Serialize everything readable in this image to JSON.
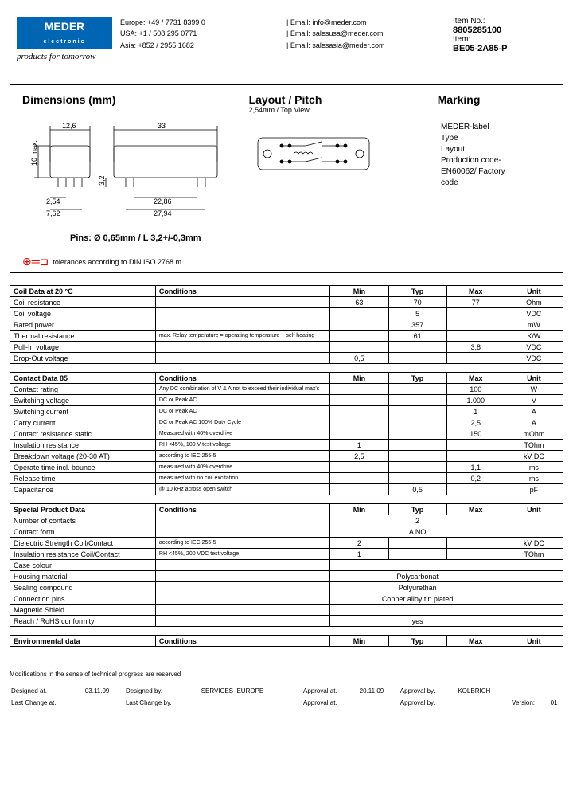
{
  "header": {
    "logo_main": "MEDER",
    "logo_sub": "electronic",
    "tagline": "products for tomorrow",
    "contacts": {
      "europe_phone": "Europe: +49 / 7731 8399 0",
      "usa_phone": "USA: +1 / 508 295 0771",
      "asia_phone": "Asia: +852 / 2955 1682",
      "europe_email": "| Email: info@meder.com",
      "usa_email": "| Email: salesusa@meder.com",
      "asia_email": "| Email: salesasia@meder.com"
    },
    "item_no_label": "Item No.:",
    "item_no": "8805285100",
    "item_label": "Item:",
    "item": "BE05-2A85-P"
  },
  "diagram": {
    "title_dimensions": "Dimensions (mm)",
    "title_layout": "Layout / Pitch",
    "layout_sub": "2,54mm / Top View",
    "title_marking": "Marking",
    "marking_lines": [
      "MEDER-label",
      "Type",
      "Layout",
      "Production code-",
      "EN60062/ Factory",
      "code"
    ],
    "dims": {
      "w1": "12,6",
      "w2": "33",
      "h1": "10 max.",
      "h2": "3,2",
      "p1": "2,54",
      "p2": "7,62",
      "p3": "22,86",
      "p4": "27,94"
    },
    "pins_note": "Pins: Ø 0,65mm / L 3,2+/-0,3mm",
    "tolerance": "tolerances according to DIN ISO 2768 m"
  },
  "tables": {
    "coil": {
      "title": "Coil Data at 20 °C",
      "rows": [
        {
          "name": "Coil resistance",
          "cond": "",
          "min": "63",
          "typ": "70",
          "max": "77",
          "unit": "Ohm"
        },
        {
          "name": "Coil voltage",
          "cond": "",
          "min": "",
          "typ": "5",
          "max": "",
          "unit": "VDC"
        },
        {
          "name": "Rated power",
          "cond": "",
          "min": "",
          "typ": "357",
          "max": "",
          "unit": "mW"
        },
        {
          "name": "Thermal resistance",
          "cond": "max. Relay temperature = operating temperature + self heating",
          "min": "",
          "typ": "61",
          "max": "",
          "unit": "K/W"
        },
        {
          "name": "Pull-In voltage",
          "cond": "",
          "min": "",
          "typ": "",
          "max": "3,8",
          "unit": "VDC"
        },
        {
          "name": "Drop-Out voltage",
          "cond": "",
          "min": "0,5",
          "typ": "",
          "max": "",
          "unit": "VDC"
        }
      ]
    },
    "contact": {
      "title": "Contact Data  85",
      "rows": [
        {
          "name": "Contact rating",
          "cond": "Any DC combination of V & A not to exceed their individual max's",
          "min": "",
          "typ": "",
          "max": "100",
          "unit": "W"
        },
        {
          "name": "Switching voltage",
          "cond": "DC or Peak AC",
          "min": "",
          "typ": "",
          "max": "1.000",
          "unit": "V"
        },
        {
          "name": "Switching current",
          "cond": "DC or Peak AC",
          "min": "",
          "typ": "",
          "max": "1",
          "unit": "A"
        },
        {
          "name": "Carry current",
          "cond": "DC or Peak AC 100% Duty Cycle",
          "min": "",
          "typ": "",
          "max": "2,5",
          "unit": "A"
        },
        {
          "name": "Contact resistance static",
          "cond": "Measured with 40% overdrive",
          "min": "",
          "typ": "",
          "max": "150",
          "unit": "mOhm"
        },
        {
          "name": "Insulation resistance",
          "cond": "RH <45%, 100 V test voltage",
          "min": "1",
          "typ": "",
          "max": "",
          "unit": "TOhm"
        },
        {
          "name": "Breakdown voltage  (20-30 AT)",
          "cond": "according to IEC 255-5",
          "min": "2,5",
          "typ": "",
          "max": "",
          "unit": "kV DC"
        },
        {
          "name": "Operate time incl. bounce",
          "cond": "measured with 40% overdrive",
          "min": "",
          "typ": "",
          "max": "1,1",
          "unit": "ms"
        },
        {
          "name": "Release time",
          "cond": "measured with no coil excitation",
          "min": "",
          "typ": "",
          "max": "0,2",
          "unit": "ms"
        },
        {
          "name": "Capacitance",
          "cond": "@ 10 kHz across open switch",
          "min": "",
          "typ": "0,5",
          "max": "",
          "unit": "pF"
        }
      ]
    },
    "special": {
      "title": "Special Product Data",
      "rows": [
        {
          "name": "Number of contacts",
          "cond": "",
          "span": "2",
          "unit": ""
        },
        {
          "name": "Contact   form",
          "cond": "",
          "span": "A   NO",
          "unit": ""
        },
        {
          "name": "Dielectric Strength Coil/Contact",
          "cond": "according to IEC 255-5",
          "min": "2",
          "typ": "",
          "max": "",
          "unit": "kV DC"
        },
        {
          "name": "Insulation resistance Coil/Contact",
          "cond": "RH <45%, 200 VDC test voltage",
          "min": "1",
          "typ": "",
          "max": "",
          "unit": "TOhm"
        },
        {
          "name": "Case colour",
          "cond": "",
          "span": "",
          "unit": ""
        },
        {
          "name": "Housing material",
          "cond": "",
          "span": "Polycarbonat",
          "unit": ""
        },
        {
          "name": "Sealing compound",
          "cond": "",
          "span": "Polyurethan",
          "unit": ""
        },
        {
          "name": "Connection pins",
          "cond": "",
          "span": "Copper alloy tin plated",
          "unit": ""
        },
        {
          "name": "Magnetic Shield",
          "cond": "",
          "span": "",
          "unit": ""
        },
        {
          "name": "Reach / RoHS conformity",
          "cond": "",
          "span": "yes",
          "unit": ""
        }
      ]
    },
    "env": {
      "title": "Environmental data"
    },
    "headers": {
      "conditions": "Conditions",
      "min": "Min",
      "typ": "Typ",
      "max": "Max",
      "unit": "Unit"
    }
  },
  "footer": {
    "note": "Modifications in the sense of technical progress are reserved",
    "designed_at_label": "Designed at.",
    "designed_at": "03.11.09",
    "designed_by_label": "Designed by.",
    "designed_by": "SERVICES_EUROPE",
    "approval_at_label": "Approval at.",
    "approval_at": "20.11.09",
    "approval_by_label": "Approval by.",
    "approval_by": "KOLBRICH",
    "last_change_at_label": "Last Change at.",
    "last_change_by_label": "Last Change by.",
    "approval_at2_label": "Approval at.",
    "approval_by2_label": "Approval by.",
    "version_label": "Version:",
    "version": "01"
  }
}
